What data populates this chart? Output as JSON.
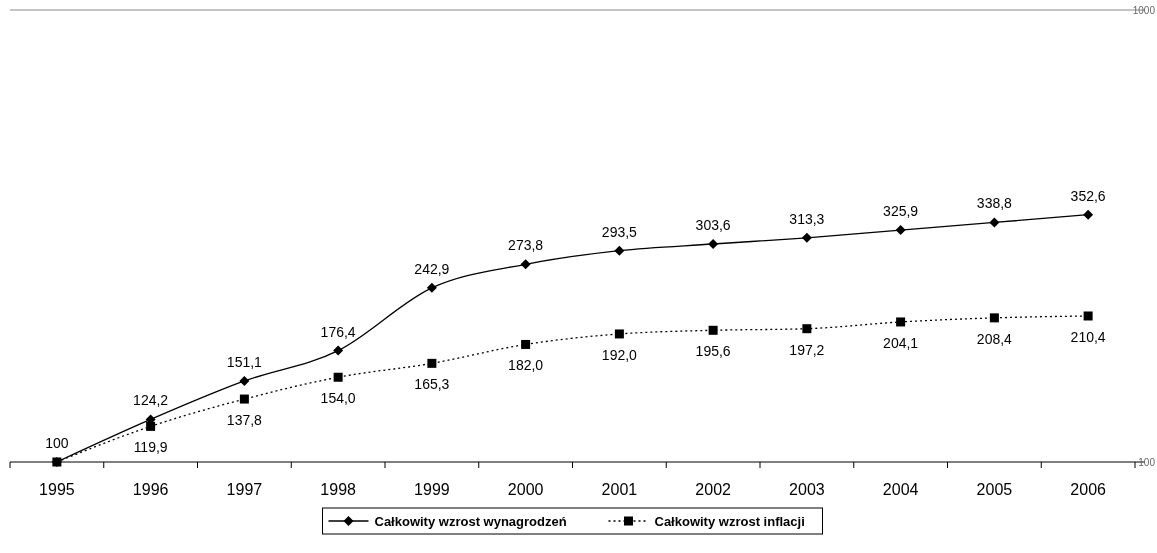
{
  "chart_data": {
    "type": "line",
    "categories": [
      "1995",
      "1996",
      "1997",
      "1998",
      "1999",
      "2000",
      "2001",
      "2002",
      "2003",
      "2004",
      "2005",
      "2006"
    ],
    "series": [
      {
        "name": "Całkowity wzrost wynagrodzeń",
        "color": "#000000",
        "marker": "diamond",
        "line_style": "solid",
        "values": [
          100,
          124.2,
          151.1,
          176.4,
          242.9,
          273.8,
          293.5,
          303.6,
          313.3,
          325.9,
          338.8,
          352.6
        ],
        "value_labels": [
          "100",
          "124,2",
          "151,1",
          "176,4",
          "242,9",
          "273,8",
          "293,5",
          "303,6",
          "313,3",
          "325,9",
          "338,8",
          "352,6"
        ]
      },
      {
        "name": "Całkowity wzrost inflacji",
        "color": "#000000",
        "marker": "square",
        "line_style": "dotted",
        "values": [
          100,
          119.9,
          137.8,
          154.0,
          165.3,
          182.0,
          192.0,
          195.6,
          197.2,
          204.1,
          208.4,
          210.4
        ],
        "value_labels": [
          null,
          "119,9",
          "137,8",
          "154,0",
          "165,3",
          "182,0",
          "192,0",
          "195,6",
          "197,2",
          "204,1",
          "208,4",
          "210,4"
        ]
      }
    ],
    "log": "y",
    "ylim": [
      100,
      1000
    ],
    "yticks": [
      100,
      1000
    ],
    "legend": "bottom"
  }
}
